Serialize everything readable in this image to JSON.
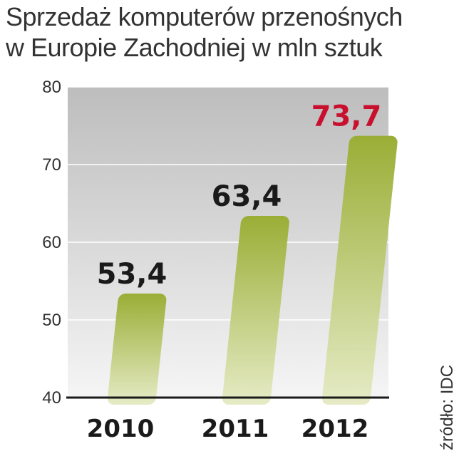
{
  "title": {
    "line1": "Sprzedaż komputerów przenośnych",
    "line2": "w Europie Zachodniej w mln sztuk"
  },
  "source": "źródło: IDC",
  "colors": {
    "bar_top": "#9aae36",
    "bar_bottom": "#e6ebc6",
    "highlight_value": "#c8102e",
    "value": "#1a1a1a",
    "plot_bg_top": "#bdbdbd",
    "plot_bg_bottom": "#f5f5f5",
    "grid": "#ffffff"
  },
  "chart_data": {
    "type": "bar",
    "categories": [
      "2010",
      "2011",
      "2012"
    ],
    "values": [
      53.4,
      63.4,
      73.7
    ],
    "value_labels": [
      "53,4",
      "63,4",
      "73,7"
    ],
    "highlight_index": 2,
    "yticks": [
      40,
      50,
      60,
      70,
      80
    ],
    "ylim": [
      40,
      80
    ],
    "grid": true,
    "title": "Sprzedaż komputerów przenośnych w Europie Zachodniej w mln sztuk",
    "xlabel": "",
    "ylabel": ""
  }
}
